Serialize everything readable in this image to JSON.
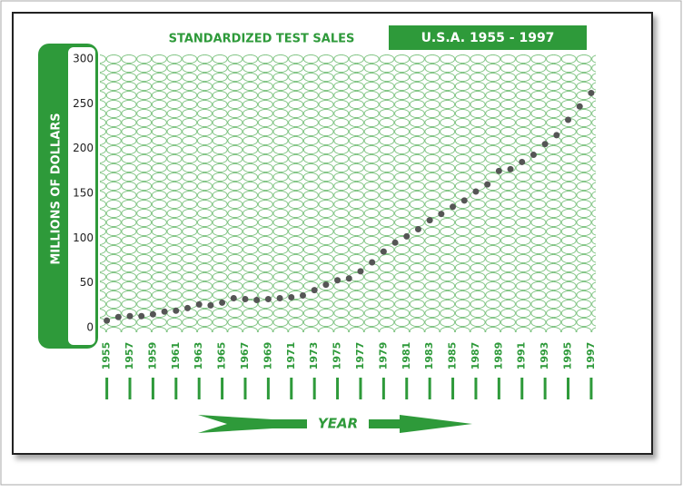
{
  "chart_data": {
    "type": "scatter",
    "title": "STANDARDIZED TEST SALES",
    "subtitle": "U.S.A. 1955 - 1997",
    "ylabel": "MILLIONS OF DOLLARS",
    "xlabel": "YEAR",
    "x": [
      1955,
      1956,
      1957,
      1958,
      1959,
      1960,
      1961,
      1962,
      1963,
      1964,
      1965,
      1966,
      1967,
      1968,
      1969,
      1970,
      1971,
      1972,
      1973,
      1974,
      1975,
      1976,
      1977,
      1978,
      1979,
      1980,
      1981,
      1982,
      1983,
      1984,
      1985,
      1986,
      1987,
      1988,
      1989,
      1990,
      1991,
      1992,
      1993,
      1994,
      1995,
      1996,
      1997
    ],
    "values": [
      8,
      12,
      13,
      13,
      15,
      18,
      19,
      22,
      26,
      25,
      28,
      33,
      32,
      31,
      32,
      33,
      34,
      36,
      42,
      48,
      53,
      55,
      63,
      73,
      85,
      95,
      102,
      110,
      120,
      127,
      135,
      142,
      152,
      160,
      175,
      177,
      185,
      193,
      205,
      215,
      232,
      247,
      262
    ],
    "color": "#555555",
    "xlim": [
      1954.4,
      1997.4
    ],
    "xticks": [
      1955,
      1957,
      1959,
      1961,
      1963,
      1965,
      1967,
      1969,
      1971,
      1973,
      1975,
      1977,
      1979,
      1981,
      1983,
      1985,
      1987,
      1989,
      1991,
      1993,
      1995,
      1997
    ],
    "ylim": [
      -5,
      305
    ],
    "yticks": [
      0,
      50,
      100,
      150,
      200,
      250,
      300
    ]
  }
}
